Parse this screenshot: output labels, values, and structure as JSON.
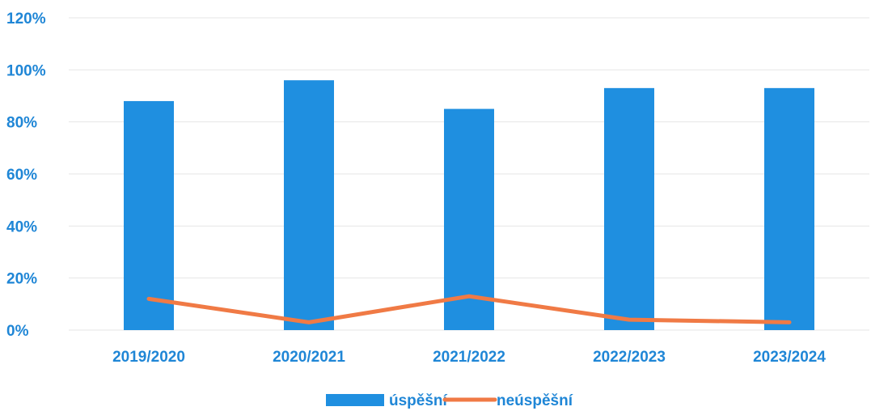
{
  "chart_data": {
    "type": "bar",
    "categories": [
      "2019/2020",
      "2020/2021",
      "2021/2022",
      "2022/2023",
      "2023/2024"
    ],
    "series": [
      {
        "name": "úspěšní",
        "type": "bar",
        "values": [
          88,
          96,
          85,
          93,
          93
        ],
        "color": "#1f8fe0"
      },
      {
        "name": "neúspěšní",
        "type": "line",
        "values": [
          12,
          3,
          13,
          4,
          3
        ],
        "color": "#f07a45"
      }
    ],
    "y_ticks": [
      "0%",
      "20%",
      "40%",
      "60%",
      "80%",
      "100%",
      "120%"
    ],
    "ylim": [
      0,
      120
    ],
    "grid": true,
    "legend_position": "bottom-center",
    "label_color": "#1f86d6"
  }
}
